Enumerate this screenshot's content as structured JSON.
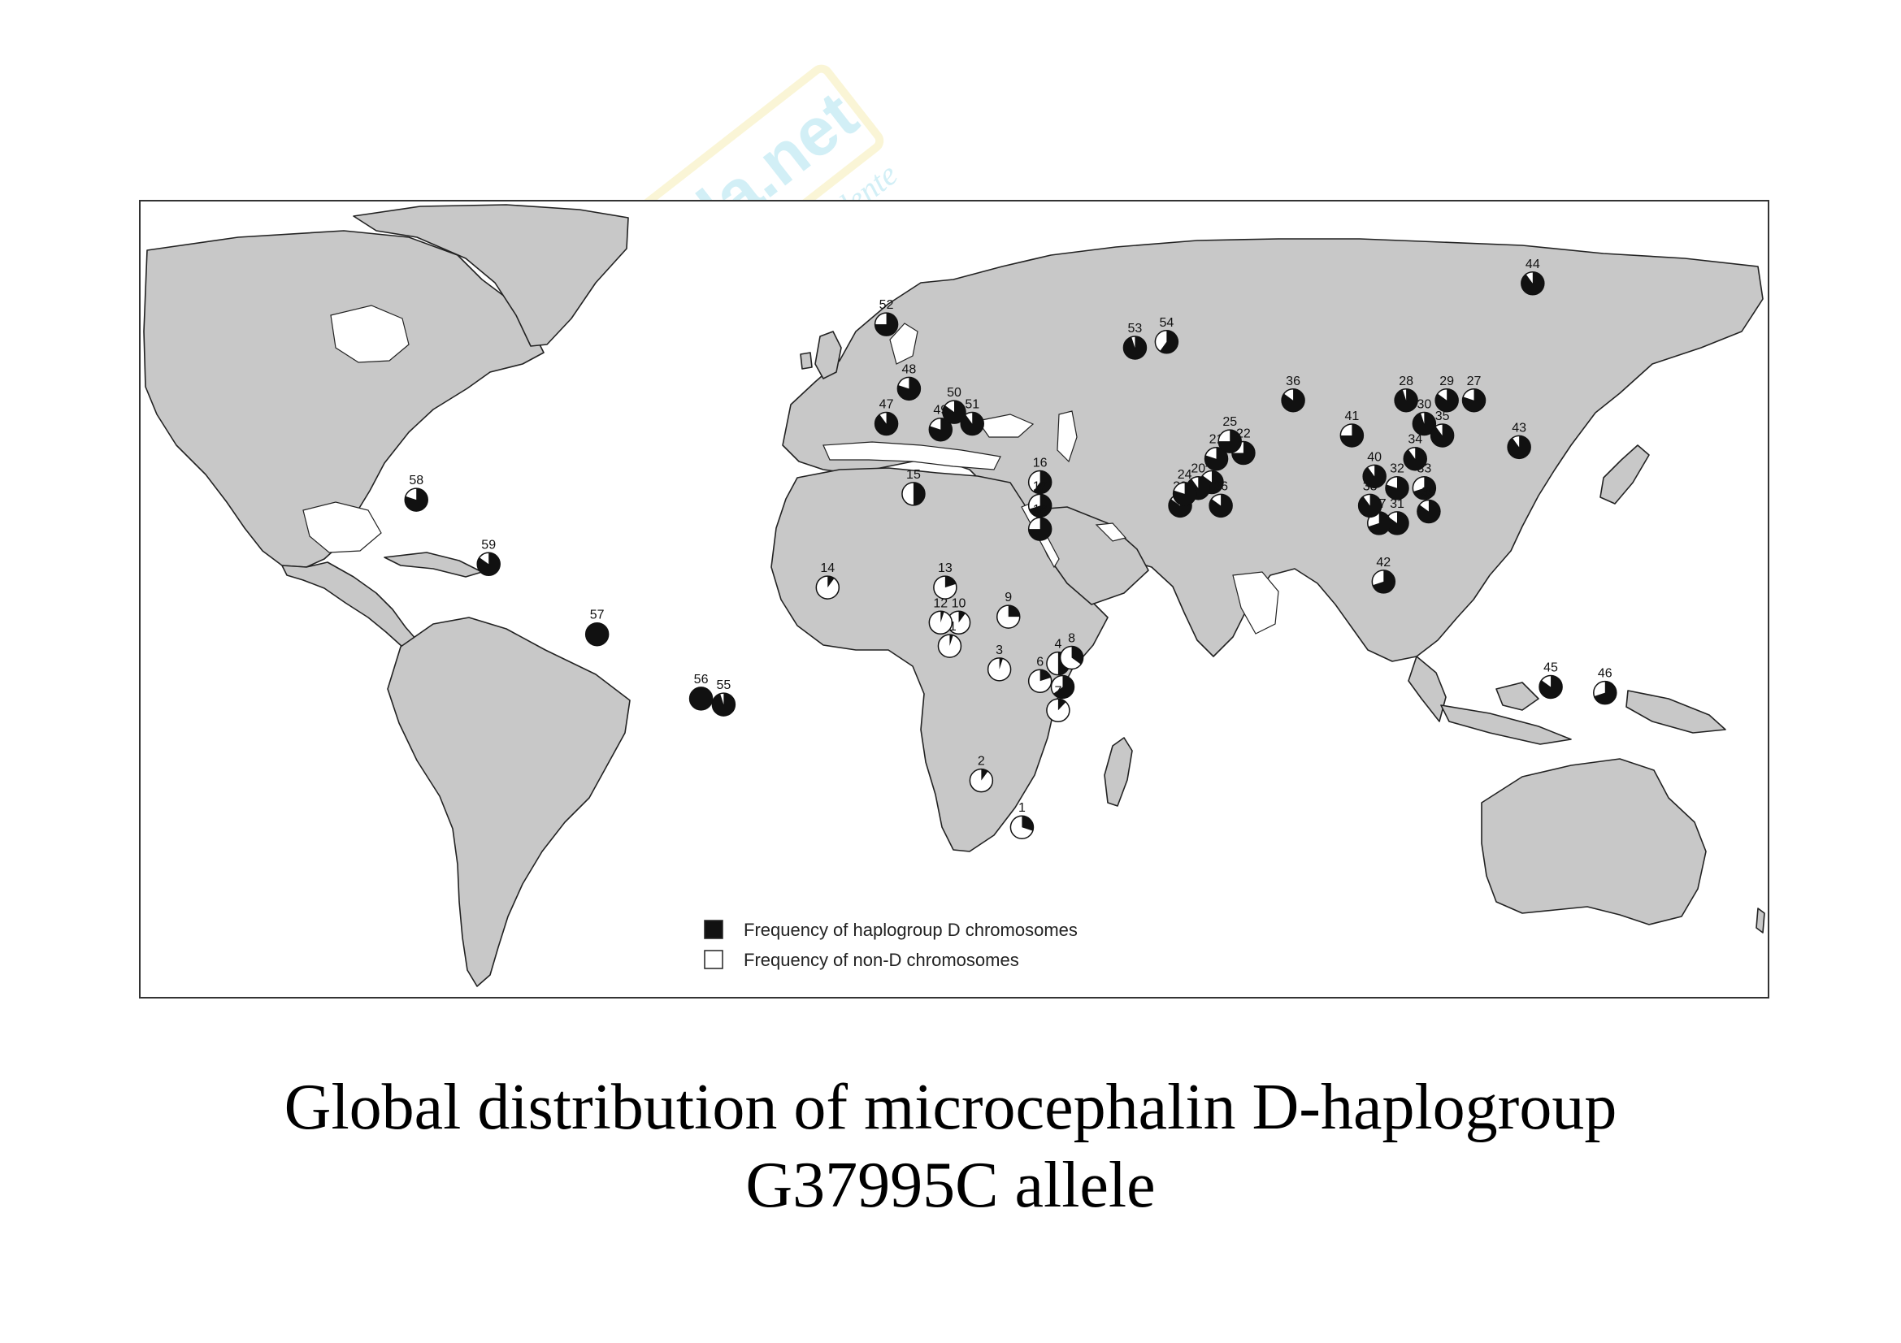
{
  "caption": {
    "line1": "Global distribution of microcephalin D-haplogroup",
    "line2": "G37995C allele"
  },
  "watermark": {
    "brand": "skuola.net",
    "tagline": "il paradiso dello studente",
    "color": "#7fd3e6",
    "accent": "#f2e58c"
  },
  "legend": {
    "d_label": "Frequency of haplogroup D chromosomes",
    "non_d_label": "Frequency of non-D chromosomes",
    "d_color": "#111111",
    "non_d_color": "#ffffff"
  },
  "colors": {
    "land": "#c8c8c8",
    "ocean": "#ffffff",
    "outline": "#222222"
  },
  "sites": [
    {
      "id": "1",
      "lon": 27,
      "lat": -29,
      "d": 0.3
    },
    {
      "id": "2",
      "lon": 18,
      "lat": -21,
      "d": 0.1
    },
    {
      "id": "3",
      "lon": 22,
      "lat": -2,
      "d": 0.05
    },
    {
      "id": "4",
      "lon": 35,
      "lat": -1,
      "d": 0.5
    },
    {
      "id": "5",
      "lon": 36,
      "lat": -5,
      "d": 0.65
    },
    {
      "id": "6",
      "lon": 31,
      "lat": -4,
      "d": 0.2
    },
    {
      "id": "7",
      "lon": 35,
      "lat": -9,
      "d": 0.12
    },
    {
      "id": "8",
      "lon": 38,
      "lat": 0,
      "d": 0.35
    },
    {
      "id": "9",
      "lon": 24,
      "lat": 7,
      "d": 0.25
    },
    {
      "id": "10",
      "lon": 13,
      "lat": 6,
      "d": 0.1
    },
    {
      "id": "11",
      "lon": 11,
      "lat": 2,
      "d": 0.05
    },
    {
      "id": "12",
      "lon": 9,
      "lat": 6,
      "d": 0.05
    },
    {
      "id": "13",
      "lon": 10,
      "lat": 12,
      "d": 0.2
    },
    {
      "id": "14",
      "lon": -16,
      "lat": 12,
      "d": 0.1
    },
    {
      "id": "15",
      "lon": 3,
      "lat": 28,
      "d": 0.5
    },
    {
      "id": "16",
      "lon": 31,
      "lat": 30,
      "d": 0.6
    },
    {
      "id": "17",
      "lon": 31,
      "lat": 26,
      "d": 0.7
    },
    {
      "id": "18",
      "lon": 31,
      "lat": 22,
      "d": 0.75
    },
    {
      "id": "19",
      "lon": 69,
      "lat": 30,
      "d": 0.85
    },
    {
      "id": "20",
      "lon": 66,
      "lat": 29,
      "d": 0.9
    },
    {
      "id": "21",
      "lon": 70,
      "lat": 34,
      "d": 0.8
    },
    {
      "id": "22",
      "lon": 76,
      "lat": 35,
      "d": 0.75
    },
    {
      "id": "23",
      "lon": 62,
      "lat": 26,
      "d": 0.85
    },
    {
      "id": "24",
      "lon": 63,
      "lat": 28,
      "d": 0.8
    },
    {
      "id": "25",
      "lon": 73,
      "lat": 37,
      "d": 0.75
    },
    {
      "id": "26",
      "lon": 71,
      "lat": 26,
      "d": 0.85
    },
    {
      "id": "27",
      "lon": 127,
      "lat": 44,
      "d": 0.8
    },
    {
      "id": "28",
      "lon": 112,
      "lat": 44,
      "d": 0.95
    },
    {
      "id": "29",
      "lon": 121,
      "lat": 44,
      "d": 0.85
    },
    {
      "id": "30",
      "lon": 116,
      "lat": 40,
      "d": 0.95
    },
    {
      "id": "31",
      "lon": 110,
      "lat": 23,
      "d": 0.85
    },
    {
      "id": "32",
      "lon": 110,
      "lat": 29,
      "d": 0.8
    },
    {
      "id": "33",
      "lon": 116,
      "lat": 29,
      "d": 0.7
    },
    {
      "id": "34",
      "lon": 114,
      "lat": 34,
      "d": 0.9
    },
    {
      "id": "35",
      "lon": 120,
      "lat": 38,
      "d": 0.9
    },
    {
      "id": "36",
      "lon": 87,
      "lat": 44,
      "d": 0.85
    },
    {
      "id": "37",
      "lon": 106,
      "lat": 23,
      "d": 0.7
    },
    {
      "id": "38",
      "lon": 104,
      "lat": 26,
      "d": 0.9
    },
    {
      "id": "39",
      "lon": 117,
      "lat": 25,
      "d": 0.85
    },
    {
      "id": "40",
      "lon": 105,
      "lat": 31,
      "d": 0.9
    },
    {
      "id": "41",
      "lon": 100,
      "lat": 38,
      "d": 0.75
    },
    {
      "id": "42",
      "lon": 107,
      "lat": 13,
      "d": 0.7
    },
    {
      "id": "43",
      "lon": 137,
      "lat": 36,
      "d": 0.9
    },
    {
      "id": "44",
      "lon": 140,
      "lat": 64,
      "d": 0.9
    },
    {
      "id": "45",
      "lon": 144,
      "lat": -5,
      "d": 0.85
    },
    {
      "id": "46",
      "lon": 156,
      "lat": -6,
      "d": 0.7
    },
    {
      "id": "47",
      "lon": -3,
      "lat": 40,
      "d": 0.9
    },
    {
      "id": "48",
      "lon": 2,
      "lat": 46,
      "d": 0.8
    },
    {
      "id": "49",
      "lon": 9,
      "lat": 39,
      "d": 0.8
    },
    {
      "id": "50",
      "lon": 12,
      "lat": 42,
      "d": 0.85
    },
    {
      "id": "51",
      "lon": 16,
      "lat": 40,
      "d": 0.9
    },
    {
      "id": "52",
      "lon": -3,
      "lat": 57,
      "d": 0.75
    },
    {
      "id": "53",
      "lon": 52,
      "lat": 53,
      "d": 0.95
    },
    {
      "id": "54",
      "lon": 59,
      "lat": 54,
      "d": 0.6
    },
    {
      "id": "55",
      "lon": -39,
      "lat": -8,
      "d": 0.95
    },
    {
      "id": "56",
      "lon": -44,
      "lat": -7,
      "d": 1.0
    },
    {
      "id": "57",
      "lon": -67,
      "lat": 4,
      "d": 1.0
    },
    {
      "id": "58",
      "lon": -107,
      "lat": 27,
      "d": 0.8
    },
    {
      "id": "59",
      "lon": -91,
      "lat": 16,
      "d": 0.85
    }
  ]
}
